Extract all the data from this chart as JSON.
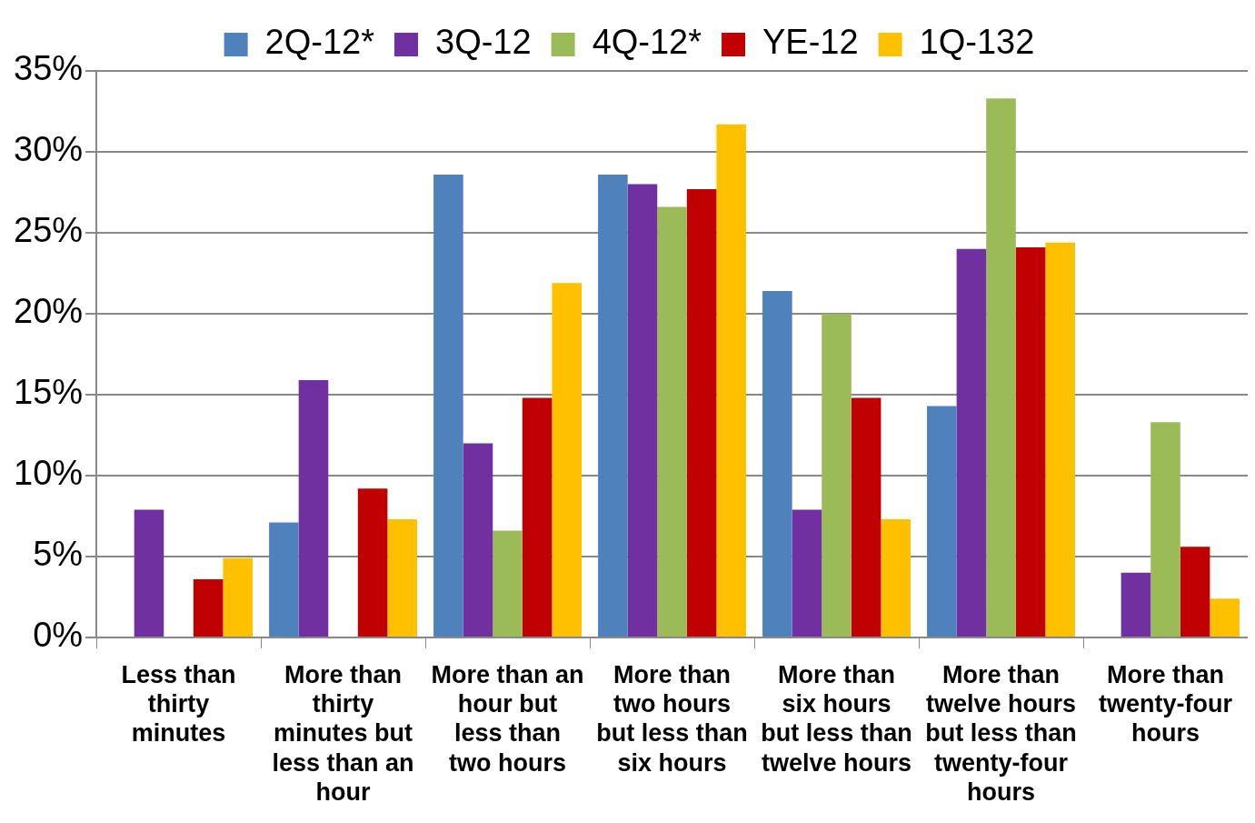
{
  "chart_data": {
    "type": "bar",
    "categories": [
      "Less than thirty minutes",
      "More than thirty minutes but less than an hour",
      "More than an hour but less than two hours",
      "More than two hours but less than six hours",
      "More than six hours but less than twelve hours",
      "More than twelve hours but less than twenty-four hours",
      "More than twenty-four hours"
    ],
    "series": [
      {
        "name": "2Q-12*",
        "color": "#4f81bd",
        "values": [
          0,
          7.1,
          28.6,
          28.6,
          21.4,
          14.3,
          0
        ]
      },
      {
        "name": "3Q-12",
        "color": "#7030a0",
        "values": [
          7.9,
          15.9,
          12.0,
          28.0,
          7.9,
          24.0,
          4.0
        ]
      },
      {
        "name": "4Q-12*",
        "color": "#9bbb59",
        "values": [
          0,
          0,
          6.6,
          26.6,
          20.0,
          33.3,
          13.3
        ]
      },
      {
        "name": "YE-12",
        "color": "#c00000",
        "values": [
          3.6,
          9.2,
          14.8,
          27.7,
          14.8,
          24.1,
          5.6
        ]
      },
      {
        "name": "1Q-132",
        "color": "#ffc000",
        "values": [
          4.9,
          7.3,
          21.9,
          31.7,
          7.3,
          24.4,
          2.4
        ]
      }
    ],
    "ylim": [
      0,
      35
    ],
    "yticks": [
      {
        "value": 0,
        "label": "0%"
      },
      {
        "value": 5,
        "label": "5%"
      },
      {
        "value": 10,
        "label": "10%"
      },
      {
        "value": 15,
        "label": "15%"
      },
      {
        "value": 20,
        "label": "20%"
      },
      {
        "value": 25,
        "label": "25%"
      },
      {
        "value": 30,
        "label": "30%"
      },
      {
        "value": 35,
        "label": "35%"
      }
    ],
    "grid": "y",
    "legend": "top"
  }
}
